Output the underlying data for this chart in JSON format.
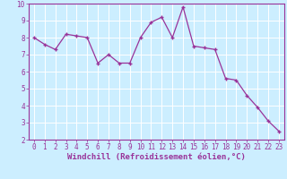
{
  "x": [
    0,
    1,
    2,
    3,
    4,
    5,
    6,
    7,
    8,
    9,
    10,
    11,
    12,
    13,
    14,
    15,
    16,
    17,
    18,
    19,
    20,
    21,
    22,
    23
  ],
  "y": [
    8.0,
    7.6,
    7.3,
    8.2,
    8.1,
    8.0,
    6.5,
    7.0,
    6.5,
    6.5,
    8.0,
    8.9,
    9.2,
    8.0,
    9.8,
    7.5,
    7.4,
    7.3,
    5.6,
    5.5,
    4.6,
    3.9,
    3.1,
    2.5
  ],
  "line_color": "#993399",
  "marker": "+",
  "marker_color": "#993399",
  "bg_color": "#cceeff",
  "grid_color": "#ffffff",
  "xlabel": "Windchill (Refroidissement éolien,°C)",
  "xlabel_color": "#993399",
  "tick_color": "#993399",
  "spine_color": "#993399",
  "ylim": [
    2,
    10
  ],
  "xlim": [
    -0.5,
    23.5
  ],
  "yticks": [
    2,
    3,
    4,
    5,
    6,
    7,
    8,
    9,
    10
  ],
  "xticks": [
    0,
    1,
    2,
    3,
    4,
    5,
    6,
    7,
    8,
    9,
    10,
    11,
    12,
    13,
    14,
    15,
    16,
    17,
    18,
    19,
    20,
    21,
    22,
    23
  ],
  "tick_fontsize": 5.5,
  "xlabel_fontsize": 6.5,
  "linewidth": 0.9,
  "markersize": 3.5
}
